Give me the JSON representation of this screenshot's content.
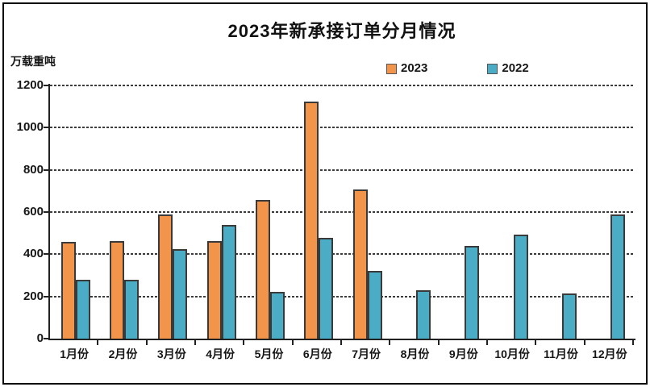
{
  "chart_data": {
    "type": "bar",
    "title": "2023年新承接订单分月情况",
    "ylabel": "万载重吨",
    "categories": [
      "1月份",
      "2月份",
      "3月份",
      "4月份",
      "5月份",
      "6月份",
      "7月份",
      "8月份",
      "9月份",
      "10月份",
      "11月份",
      "12月份"
    ],
    "series": [
      {
        "name": "2023",
        "color": "#F2944A",
        "values": [
          458,
          463,
          590,
          461,
          659,
          1122,
          707,
          null,
          null,
          null,
          null,
          null
        ]
      },
      {
        "name": "2022",
        "color": "#4BACC6",
        "values": [
          278,
          280,
          425,
          540,
          220,
          476,
          320,
          228,
          439,
          492,
          215,
          590
        ]
      }
    ],
    "ylim": [
      0,
      1200
    ],
    "ytick_interval": 200,
    "grid": "horizontal-dashed",
    "legend_position": "top-right"
  }
}
